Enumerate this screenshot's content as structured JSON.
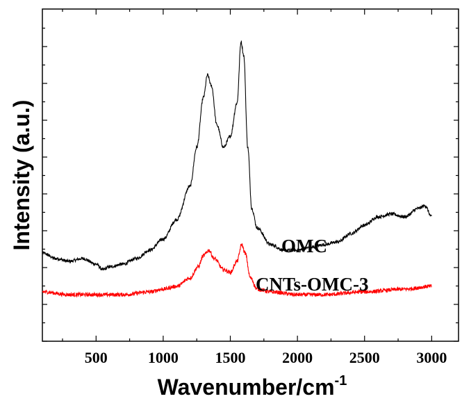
{
  "chart_data": {
    "type": "line",
    "xlabel": "Wavenumber/cm",
    "xlabel_superscript": "-1",
    "ylabel": "Intensity (a.u.)",
    "xlim": [
      100,
      3200
    ],
    "x_ticks": [
      500,
      1000,
      1500,
      2000,
      2500,
      3000
    ],
    "x_tick_labels": [
      "500",
      "1000",
      "1500",
      "2000",
      "2500",
      "3000"
    ],
    "y_tick_labels_shown": false,
    "grid": false,
    "legend": "inline labels next to curves",
    "series": [
      {
        "name": "OMC",
        "color": "#000000",
        "points": [
          [
            100,
            0.24
          ],
          [
            200,
            0.22
          ],
          [
            300,
            0.21
          ],
          [
            400,
            0.22
          ],
          [
            500,
            0.2
          ],
          [
            550,
            0.18
          ],
          [
            600,
            0.19
          ],
          [
            700,
            0.2
          ],
          [
            800,
            0.22
          ],
          [
            900,
            0.25
          ],
          [
            1000,
            0.29
          ],
          [
            1100,
            0.36
          ],
          [
            1200,
            0.48
          ],
          [
            1250,
            0.62
          ],
          [
            1300,
            0.8
          ],
          [
            1330,
            0.88
          ],
          [
            1360,
            0.84
          ],
          [
            1400,
            0.7
          ],
          [
            1450,
            0.62
          ],
          [
            1500,
            0.66
          ],
          [
            1550,
            0.78
          ],
          [
            1580,
            1.0
          ],
          [
            1600,
            0.95
          ],
          [
            1630,
            0.62
          ],
          [
            1660,
            0.4
          ],
          [
            1700,
            0.33
          ],
          [
            1800,
            0.27
          ],
          [
            1900,
            0.25
          ],
          [
            2000,
            0.25
          ],
          [
            2100,
            0.26
          ],
          [
            2200,
            0.27
          ],
          [
            2300,
            0.28
          ],
          [
            2400,
            0.31
          ],
          [
            2500,
            0.34
          ],
          [
            2600,
            0.37
          ],
          [
            2700,
            0.38
          ],
          [
            2800,
            0.37
          ],
          [
            2900,
            0.4
          ],
          [
            2950,
            0.41
          ],
          [
            3000,
            0.37
          ]
        ]
      },
      {
        "name": "CNTs-OMC-3",
        "color": "#ff0000",
        "points": [
          [
            100,
            0.1
          ],
          [
            300,
            0.09
          ],
          [
            500,
            0.09
          ],
          [
            700,
            0.09
          ],
          [
            900,
            0.1
          ],
          [
            1000,
            0.11
          ],
          [
            1100,
            0.12
          ],
          [
            1200,
            0.15
          ],
          [
            1260,
            0.19
          ],
          [
            1300,
            0.23
          ],
          [
            1340,
            0.25
          ],
          [
            1380,
            0.22
          ],
          [
            1450,
            0.18
          ],
          [
            1500,
            0.17
          ],
          [
            1550,
            0.21
          ],
          [
            1585,
            0.27
          ],
          [
            1610,
            0.24
          ],
          [
            1650,
            0.15
          ],
          [
            1700,
            0.11
          ],
          [
            1800,
            0.1
          ],
          [
            2000,
            0.09
          ],
          [
            2200,
            0.09
          ],
          [
            2500,
            0.1
          ],
          [
            2800,
            0.11
          ],
          [
            3000,
            0.12
          ]
        ]
      }
    ]
  }
}
